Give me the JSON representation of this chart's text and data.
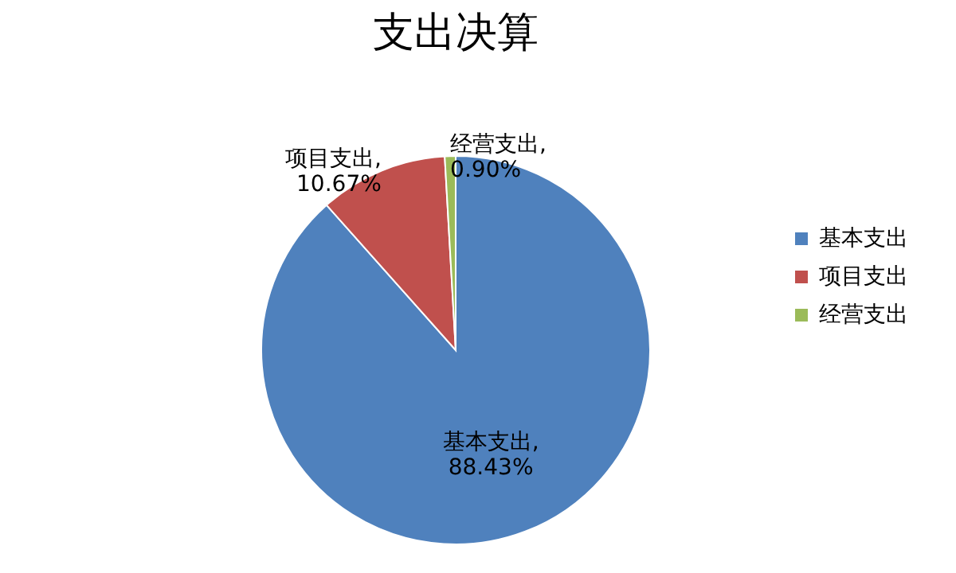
{
  "chart_data": {
    "type": "pie",
    "title": "支出决算",
    "categories": [
      "基本支出",
      "项目支出",
      "经营支出"
    ],
    "values": [
      88.43,
      10.67,
      0.9
    ],
    "colors": [
      "#4f81bd",
      "#c0504d",
      "#9bbb59"
    ],
    "value_labels": [
      "基本支出,\n88.43%",
      "项目支出,\n10.67%",
      "经营支出,\n0.90%"
    ],
    "legend": "right"
  }
}
